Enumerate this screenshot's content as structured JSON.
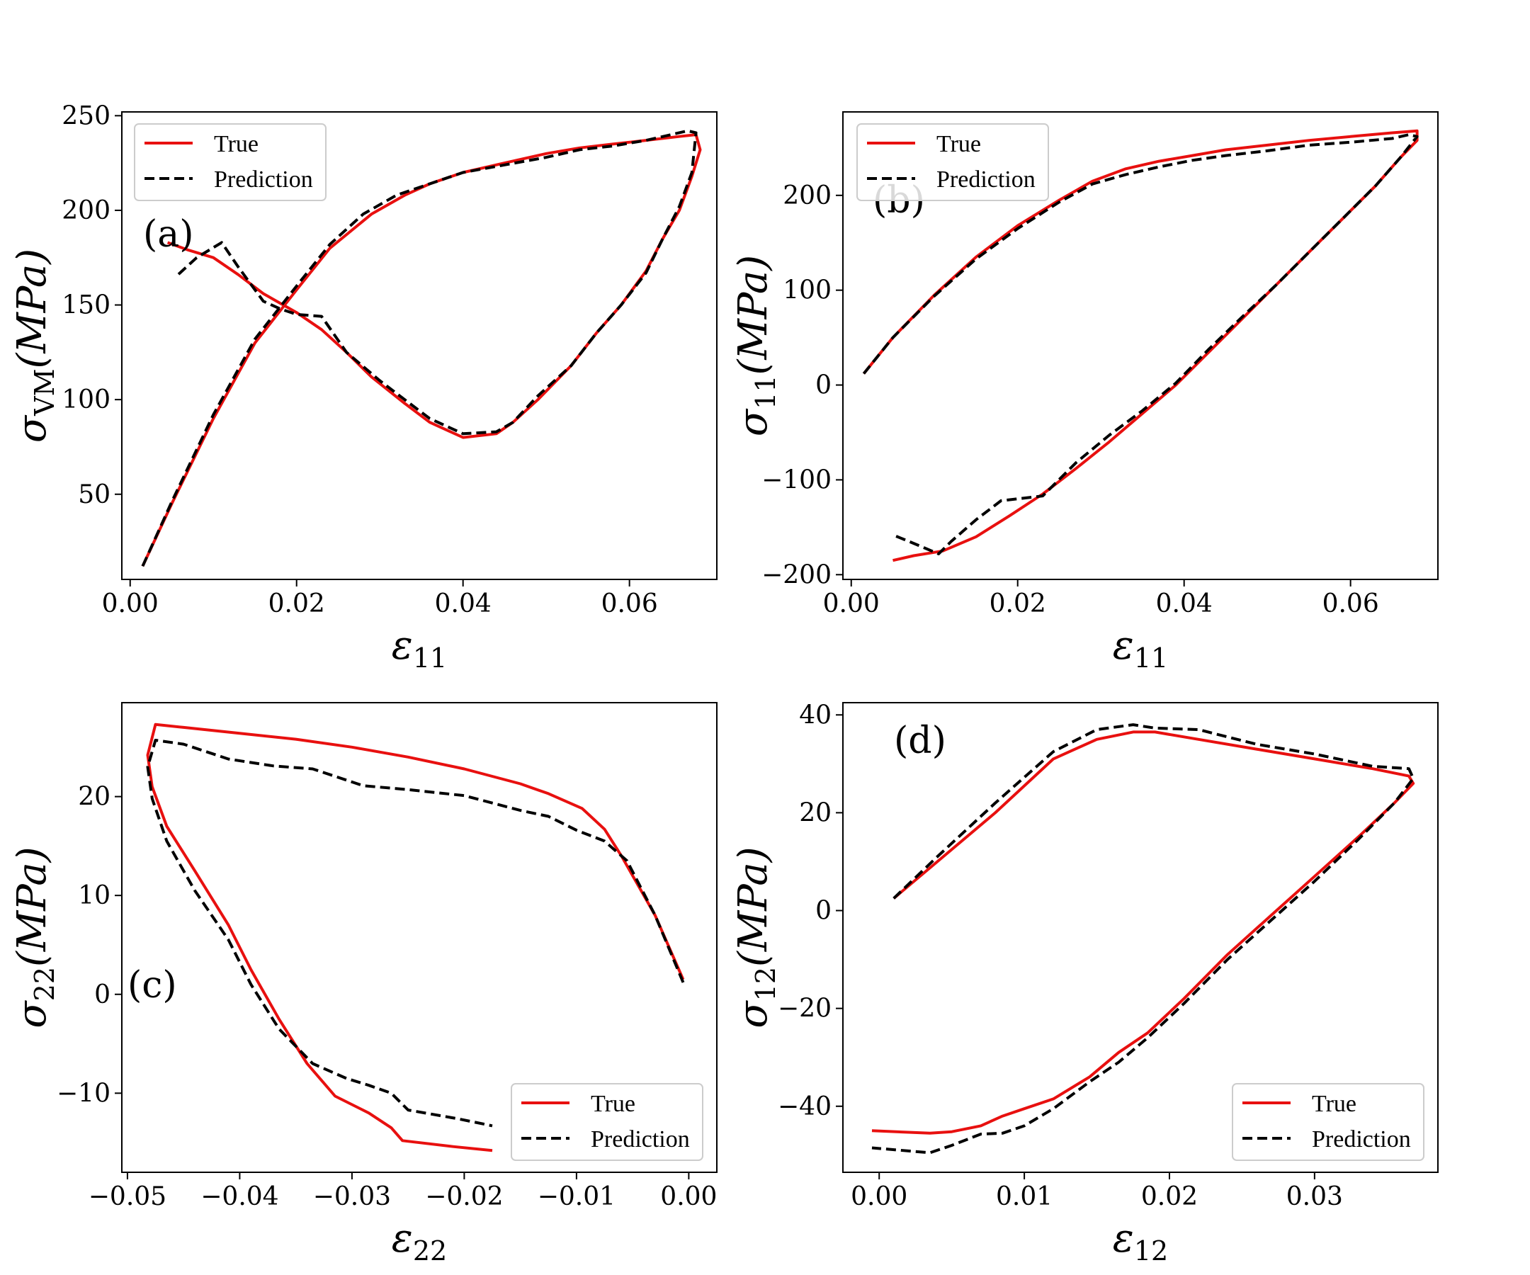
{
  "legend": {
    "true_label": "True",
    "prediction_label": "Prediction"
  },
  "colors": {
    "true": "#e8100f",
    "prediction": "#000000"
  },
  "chart_data": [
    {
      "type": "line",
      "panel_label": "(a)",
      "xlabel": {
        "symbol": "ε",
        "sub": "11"
      },
      "ylabel": {
        "symbol": "σ",
        "sub": "VM",
        "tail": "(MPa)"
      },
      "xlim": [
        -0.001,
        0.0705
      ],
      "ylim": [
        5,
        252
      ],
      "xticks": [
        0.0,
        0.02,
        0.04,
        0.06
      ],
      "xtick_labels": [
        "0.00",
        "0.02",
        "0.04",
        "0.06"
      ],
      "yticks": [
        50,
        100,
        150,
        200,
        250
      ],
      "ytick_labels": [
        "50",
        "100",
        "150",
        "200",
        "250"
      ],
      "legend_position": "top-left",
      "series": [
        {
          "name": "True",
          "x": [
            0.0015,
            0.005,
            0.01,
            0.015,
            0.02,
            0.024,
            0.029,
            0.033,
            0.036,
            0.04,
            0.045,
            0.05,
            0.054,
            0.058,
            0.062,
            0.066,
            0.068,
            0.0685,
            0.0675,
            0.066,
            0.064,
            0.062,
            0.059,
            0.056,
            0.053,
            0.049,
            0.046,
            0.044,
            0.04,
            0.036,
            0.033,
            0.029,
            0.026,
            0.023,
            0.02,
            0.016,
            0.013,
            0.01,
            0.007,
            0.0045
          ],
          "y": [
            12,
            45,
            90,
            130,
            158,
            180,
            198,
            208,
            214,
            220,
            225,
            230,
            233,
            235,
            237,
            239,
            240,
            232,
            218,
            200,
            185,
            168,
            150,
            135,
            118,
            100,
            88,
            82,
            80,
            88,
            98,
            112,
            125,
            137,
            146,
            156,
            166,
            175,
            179,
            183
          ]
        },
        {
          "name": "Prediction",
          "x": [
            0.0015,
            0.005,
            0.01,
            0.015,
            0.02,
            0.024,
            0.028,
            0.032,
            0.036,
            0.04,
            0.045,
            0.05,
            0.054,
            0.058,
            0.062,
            0.065,
            0.067,
            0.068,
            0.0675,
            0.066,
            0.064,
            0.062,
            0.059,
            0.056,
            0.053,
            0.049,
            0.046,
            0.044,
            0.04,
            0.036,
            0.033,
            0.03,
            0.026,
            0.023,
            0.02,
            0.018,
            0.016,
            0.013,
            0.011,
            0.008,
            0.0055
          ],
          "y": [
            12,
            46,
            92,
            132,
            160,
            182,
            198,
            208,
            214,
            220,
            224,
            228,
            232,
            234,
            237,
            240,
            242,
            241,
            220,
            202,
            185,
            167,
            150,
            135,
            118,
            102,
            88,
            83,
            82,
            90,
            100,
            110,
            125,
            144,
            145,
            148,
            152,
            170,
            183,
            175,
            165
          ]
        }
      ]
    },
    {
      "type": "line",
      "panel_label": "(b)",
      "xlabel": {
        "symbol": "ε",
        "sub": "11"
      },
      "ylabel": {
        "symbol": "σ",
        "sub": "11",
        "tail": "(MPa)"
      },
      "xlim": [
        -0.001,
        0.0705
      ],
      "ylim": [
        -205,
        288
      ],
      "xticks": [
        0.0,
        0.02,
        0.04,
        0.06
      ],
      "xtick_labels": [
        "0.00",
        "0.02",
        "0.04",
        "0.06"
      ],
      "yticks": [
        -200,
        -100,
        0,
        100,
        200
      ],
      "ytick_labels": [
        "−200",
        "−100",
        "0",
        "100",
        "200"
      ],
      "legend_position": "top-left",
      "series": [
        {
          "name": "True",
          "x": [
            0.0015,
            0.005,
            0.01,
            0.015,
            0.02,
            0.025,
            0.029,
            0.033,
            0.037,
            0.041,
            0.045,
            0.05,
            0.055,
            0.06,
            0.065,
            0.068,
            0.068,
            0.066,
            0.063,
            0.059,
            0.055,
            0.051,
            0.047,
            0.043,
            0.039,
            0.035,
            0.031,
            0.027,
            0.023,
            0.019,
            0.015,
            0.011,
            0.0075,
            0.005
          ],
          "y": [
            12,
            50,
            95,
            135,
            168,
            195,
            215,
            228,
            236,
            242,
            248,
            253,
            258,
            262,
            266,
            268,
            258,
            240,
            210,
            175,
            140,
            105,
            70,
            35,
            0,
            -30,
            -60,
            -88,
            -115,
            -138,
            -160,
            -175,
            -180,
            -185
          ]
        },
        {
          "name": "Prediction",
          "x": [
            0.0015,
            0.005,
            0.01,
            0.015,
            0.02,
            0.025,
            0.029,
            0.033,
            0.037,
            0.041,
            0.045,
            0.05,
            0.055,
            0.06,
            0.065,
            0.067,
            0.068,
            0.066,
            0.063,
            0.059,
            0.055,
            0.051,
            0.047,
            0.043,
            0.039,
            0.035,
            0.031,
            0.027,
            0.023,
            0.018,
            0.015,
            0.012,
            0.0105,
            0.0075,
            0.005
          ],
          "y": [
            12,
            50,
            94,
            133,
            165,
            193,
            212,
            222,
            230,
            237,
            242,
            247,
            253,
            256,
            260,
            264,
            262,
            240,
            210,
            175,
            140,
            105,
            72,
            38,
            2,
            -27,
            -53,
            -82,
            -117,
            -122,
            -142,
            -165,
            -178,
            -167,
            -158
          ]
        }
      ]
    },
    {
      "type": "line",
      "panel_label": "(c)",
      "xlabel": {
        "symbol": "ε",
        "sub": "22"
      },
      "ylabel": {
        "symbol": "σ",
        "sub": "22",
        "tail": "(MPa)"
      },
      "xlim": [
        -0.0505,
        0.0025
      ],
      "ylim": [
        -18,
        29.5
      ],
      "xticks": [
        -0.05,
        -0.04,
        -0.03,
        -0.02,
        -0.01,
        0.0
      ],
      "xtick_labels": [
        "−0.05",
        "−0.04",
        "−0.03",
        "−0.02",
        "−0.01",
        "0.00"
      ],
      "yticks": [
        -10,
        0,
        10,
        20
      ],
      "ytick_labels": [
        "−10",
        "0",
        "10",
        "20"
      ],
      "legend_position": "bottom-right",
      "series": [
        {
          "name": "True",
          "x": [
            -0.0005,
            -0.003,
            -0.006,
            -0.0075,
            -0.0095,
            -0.0125,
            -0.015,
            -0.02,
            -0.025,
            -0.03,
            -0.035,
            -0.04,
            -0.045,
            -0.0475,
            -0.0482,
            -0.0478,
            -0.0465,
            -0.044,
            -0.041,
            -0.039,
            -0.0365,
            -0.034,
            -0.0315,
            -0.0285,
            -0.0265,
            -0.0255,
            -0.021,
            -0.0175
          ],
          "y": [
            1.5,
            8,
            14,
            16.7,
            18.8,
            20.3,
            21.3,
            22.8,
            24,
            25,
            25.8,
            26.4,
            27,
            27.3,
            24.2,
            21,
            17,
            12.5,
            7,
            2.5,
            -2.5,
            -7,
            -10.3,
            -12,
            -13.5,
            -14.8,
            -15.4,
            -15.8
          ]
        },
        {
          "name": "Prediction",
          "x": [
            -0.0005,
            -0.003,
            -0.0055,
            -0.0075,
            -0.01,
            -0.0125,
            -0.015,
            -0.02,
            -0.025,
            -0.029,
            -0.0335,
            -0.037,
            -0.041,
            -0.045,
            -0.0475,
            -0.0482,
            -0.0478,
            -0.0465,
            -0.044,
            -0.041,
            -0.039,
            -0.0365,
            -0.0335,
            -0.0305,
            -0.0285,
            -0.0265,
            -0.025,
            -0.0205,
            -0.0175
          ],
          "y": [
            1.2,
            8,
            13.5,
            15.5,
            16.6,
            18,
            18.6,
            20.1,
            20.7,
            21.1,
            22.8,
            23.1,
            23.8,
            25.3,
            25.7,
            23,
            19.8,
            15.5,
            10.5,
            5.5,
            1,
            -3.5,
            -7,
            -8.5,
            -9.2,
            -10,
            -11.7,
            -12.6,
            -13.3
          ]
        }
      ]
    },
    {
      "type": "line",
      "panel_label": "(d)",
      "xlabel": {
        "symbol": "ε",
        "sub": "12"
      },
      "ylabel": {
        "symbol": "σ",
        "sub": "12",
        "tail": "(MPa)"
      },
      "xlim": [
        -0.0025,
        0.0385
      ],
      "ylim": [
        -53.5,
        42.5
      ],
      "xticks": [
        0.0,
        0.01,
        0.02,
        0.03
      ],
      "xtick_labels": [
        "0.00",
        "0.01",
        "0.02",
        "0.03"
      ],
      "yticks": [
        -40,
        -20,
        0,
        20,
        40
      ],
      "ytick_labels": [
        "−40",
        "−20",
        "0",
        "20",
        "40"
      ],
      "legend_position": "bottom-right",
      "series": [
        {
          "name": "True",
          "x": [
            0.001,
            0.004,
            0.008,
            0.012,
            0.015,
            0.0175,
            0.019,
            0.022,
            0.026,
            0.03,
            0.034,
            0.0365,
            0.0368,
            0.0355,
            0.033,
            0.03,
            0.027,
            0.024,
            0.021,
            0.0185,
            0.0165,
            0.0145,
            0.012,
            0.01,
            0.0085,
            0.007,
            0.005,
            0.0035,
            -0.0005
          ],
          "y": [
            2.5,
            10,
            20,
            31,
            35,
            36.5,
            36.5,
            35,
            33,
            31,
            29,
            27.5,
            26,
            22,
            15,
            7,
            -1,
            -9,
            -18,
            -25,
            -29,
            -34,
            -38.5,
            -40.5,
            -42,
            -44,
            -45.2,
            -45.5,
            -45
          ]
        },
        {
          "name": "Prediction",
          "x": [
            0.001,
            0.004,
            0.008,
            0.012,
            0.015,
            0.0175,
            0.019,
            0.022,
            0.026,
            0.03,
            0.034,
            0.0365,
            0.0368,
            0.0355,
            0.033,
            0.03,
            0.027,
            0.024,
            0.021,
            0.0185,
            0.0165,
            0.0145,
            0.012,
            0.01,
            0.0085,
            0.007,
            0.005,
            0.0035,
            -0.0005
          ],
          "y": [
            2.5,
            11,
            22,
            32.5,
            37,
            38,
            37.3,
            37,
            34,
            32,
            29.5,
            29,
            27,
            22,
            14.5,
            6,
            -2,
            -10,
            -19,
            -26,
            -31,
            -35,
            -40.5,
            -44,
            -45.5,
            -45.7,
            -48,
            -49.5,
            -48.5
          ]
        }
      ]
    }
  ]
}
